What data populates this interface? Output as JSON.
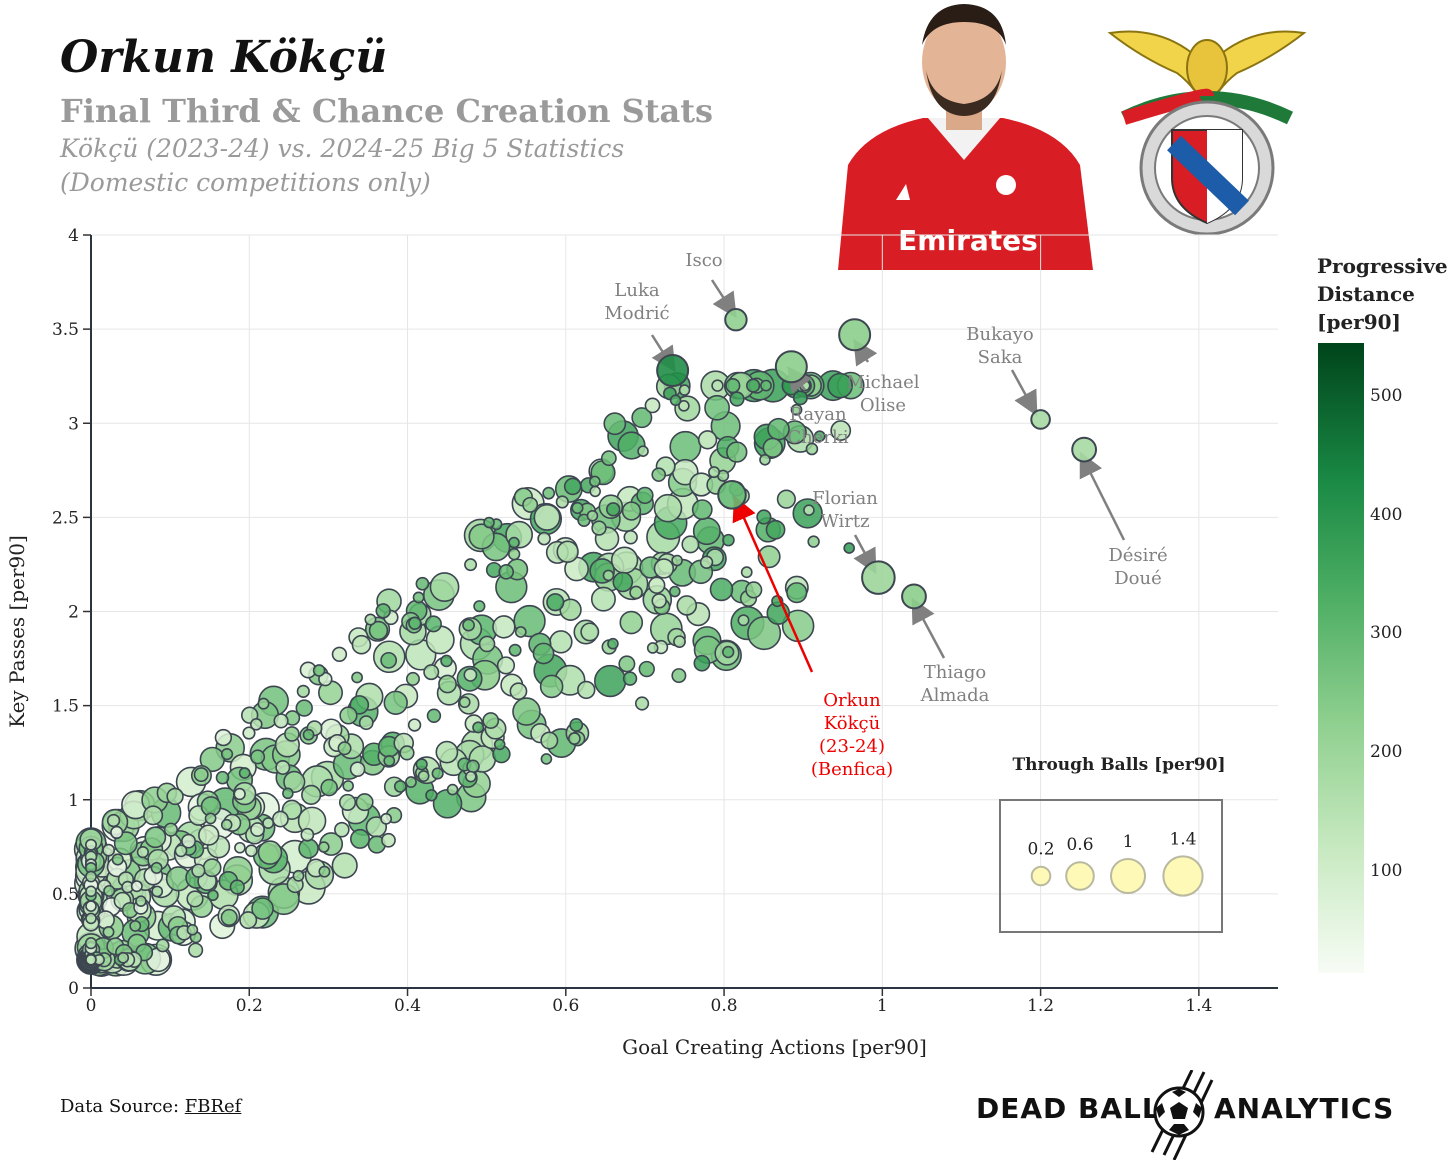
{
  "header": {
    "title": "Orkun Kökçü",
    "subtitle": "Final Third & Chance Creation Stats",
    "subtitle2_line1": "Kökçü (2023-24) vs. 2024-25 Big 5 Statistics",
    "subtitle2_line2": "(Domestic competitions only)"
  },
  "colorbar": {
    "title_line1": "Progressive",
    "title_line2": "Distance",
    "title_line3": "[per90]",
    "ticks": [
      "500",
      "400",
      "300",
      "200",
      "100"
    ],
    "tick_values": [
      500,
      400,
      300,
      200,
      100
    ],
    "range": [
      10,
      550
    ],
    "colors": [
      "#f7fcf5",
      "#c7e9c0",
      "#8ecf8e",
      "#4cad63",
      "#1a8a45",
      "#00441b"
    ]
  },
  "footer": {
    "source_prefix": "Data Source: ",
    "source_link": "FBRef",
    "brand_left": "DEAD BALL",
    "brand_right": "ANALYTICS"
  },
  "chart_data": {
    "type": "scatter",
    "title": "Final Third & Chance Creation Stats",
    "xlabel": "Goal Creating Actions [per90]",
    "ylabel": "Key Passes [per90]",
    "xlim": [
      0,
      1.5
    ],
    "ylim": [
      0,
      4
    ],
    "x_ticks": [
      0,
      0.2,
      0.4,
      0.6,
      0.8,
      1,
      1.2,
      1.4
    ],
    "x_tick_labels": [
      "0",
      "0.2",
      "0.4",
      "0.6",
      "0.8",
      "1",
      "1.2",
      "1.4"
    ],
    "y_ticks": [
      0,
      0.5,
      1,
      1.5,
      2,
      2.5,
      3,
      3.5,
      4
    ],
    "y_tick_labels": [
      "0",
      "0.5",
      "1",
      "1.5",
      "2",
      "2.5",
      "3",
      "3.5",
      "4"
    ],
    "size_variable": "Through Balls [per90]",
    "color_variable": "Progressive Distance [per90]",
    "size_legend": {
      "title": "Through Balls [per90]",
      "values": [
        0.2,
        0.6,
        1,
        1.4
      ],
      "labels": [
        "0.2",
        "0.6",
        "1",
        "1.4"
      ]
    },
    "highlighted": [
      {
        "name": "Isco",
        "gca": 0.815,
        "kp": 3.55,
        "tb": 0.3,
        "prog": 220
      },
      {
        "name": "Luka Modrić",
        "gca": 0.735,
        "kp": 3.28,
        "tb": 0.8,
        "prog": 430
      },
      {
        "name": "Rayan Cherki",
        "gca": 0.885,
        "kp": 3.3,
        "tb": 0.8,
        "prog": 230
      },
      {
        "name": "Michael Olise",
        "gca": 0.965,
        "kp": 3.47,
        "tb": 0.8,
        "prog": 230
      },
      {
        "name": "Bukayo Saka",
        "gca": 1.2,
        "kp": 3.02,
        "tb": 0.2,
        "prog": 180
      },
      {
        "name": "Désiré Doué",
        "gca": 1.255,
        "kp": 2.86,
        "tb": 0.4,
        "prog": 180
      },
      {
        "name": "Florian Wirtz",
        "gca": 0.995,
        "kp": 2.18,
        "tb": 0.9,
        "prog": 200
      },
      {
        "name": "Thiago Almada",
        "gca": 1.04,
        "kp": 2.08,
        "tb": 0.4,
        "prog": 230
      },
      {
        "name": "Orkun Kökçü (23-24) (Benfica)",
        "gca": 0.81,
        "kp": 2.62,
        "tb": 0.6,
        "prog": 290
      }
    ],
    "annotations": [
      {
        "name": "Isco",
        "lines": [
          "Isco"
        ]
      },
      {
        "name": "Luka Modrić",
        "lines": [
          "Luka",
          "Modrić"
        ]
      },
      {
        "name": "Rayan Cherki",
        "lines": [
          "Rayan",
          "Cherki"
        ]
      },
      {
        "name": "Michael Olise",
        "lines": [
          "Michael",
          "Olise"
        ]
      },
      {
        "name": "Bukayo Saka",
        "lines": [
          "Bukayo",
          "Saka"
        ]
      },
      {
        "name": "Désiré Doué",
        "lines": [
          "Désiré",
          "Doué"
        ]
      },
      {
        "name": "Florian Wirtz",
        "lines": [
          "Florian",
          "Wirtz"
        ]
      },
      {
        "name": "Thiago Almada",
        "lines": [
          "Thiago",
          "Almada"
        ]
      },
      {
        "name": "Orkun Kökçü",
        "lines": [
          "Orkun",
          "Kökçü",
          "(23-24)",
          "(Benfica)"
        ]
      }
    ],
    "background_players": {
      "count": 620,
      "gca_range": [
        0,
        1.0
      ],
      "kp_range": [
        0.1,
        3.2
      ],
      "generated": true,
      "seed": 7
    }
  }
}
